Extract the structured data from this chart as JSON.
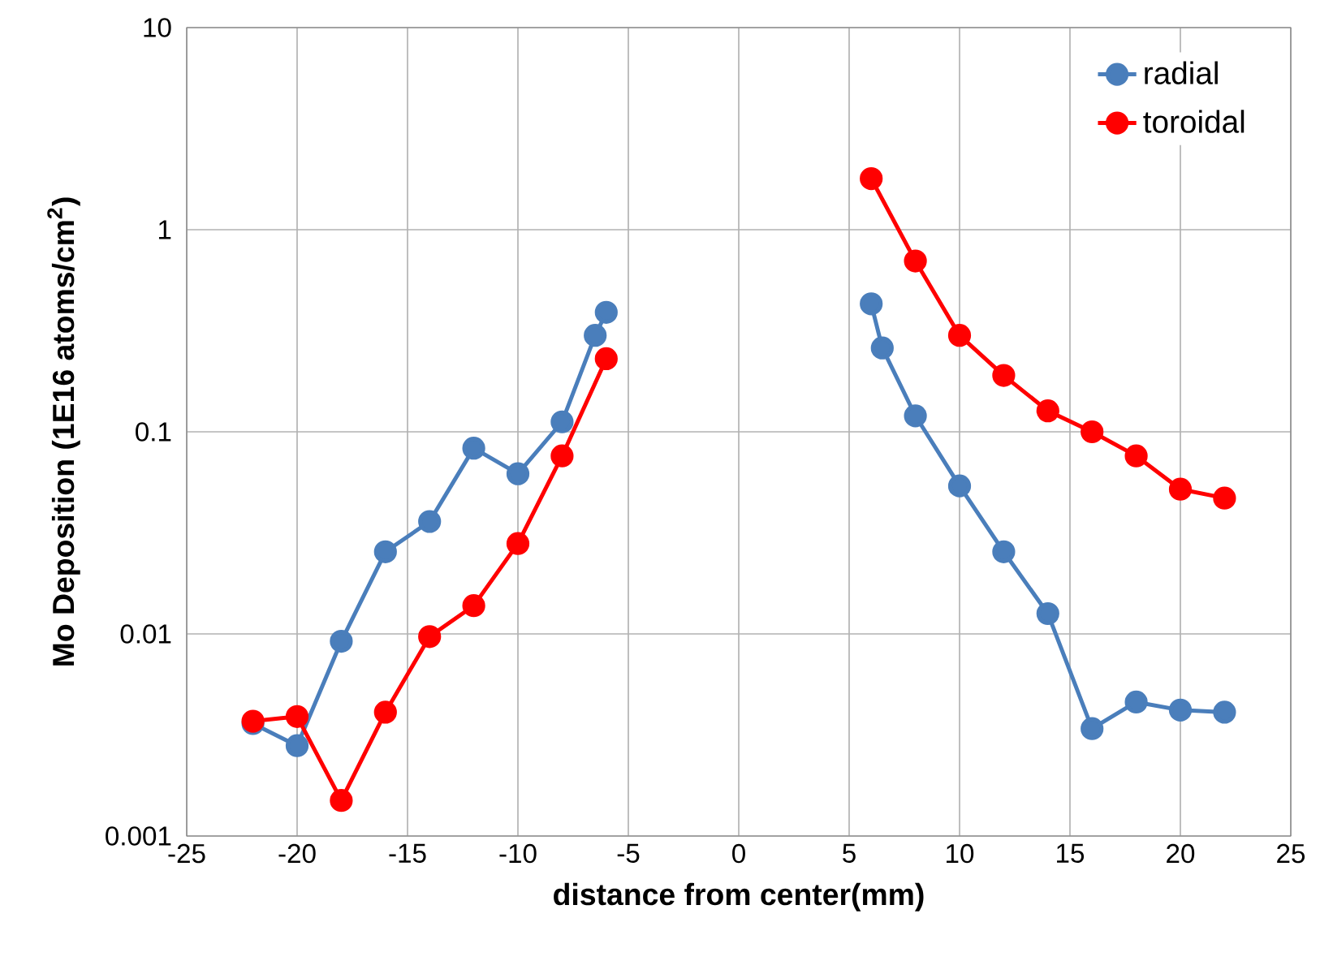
{
  "chart_data": {
    "type": "line",
    "xlabel": "distance from center(mm)",
    "ylabel": "Mo Deposition (1E16 atoms/cm$^{2}$)",
    "log": "y",
    "xlim": [
      -25,
      25
    ],
    "xticks": [
      -25,
      -20,
      -15,
      -10,
      -5,
      0,
      5,
      10,
      15,
      20,
      25
    ],
    "ylim": [
      0.001,
      10
    ],
    "yticks": [
      0.001,
      0.01,
      0.1,
      1,
      10
    ],
    "grid": true,
    "legend": "top right",
    "marker": "circle",
    "line_style": "solid",
    "series": [
      {
        "name": "radial",
        "color": "#4a7ebb",
        "x": [
          -22,
          -20,
          -18,
          -16,
          -14,
          -12,
          -10,
          -8,
          -6.5,
          -6,
          0,
          6,
          6.5,
          8,
          10,
          12,
          14,
          16,
          18,
          20,
          22
        ],
        "values": [
          0.0036,
          0.0028,
          0.0092,
          0.0255,
          0.036,
          0.083,
          0.062,
          0.112,
          0.3,
          0.39,
          null,
          0.43,
          0.26,
          0.12,
          0.054,
          0.0255,
          0.0126,
          0.0034,
          0.0046,
          0.0042,
          0.0041
        ]
      },
      {
        "name": "toroidal",
        "color": "#ff0000",
        "x": [
          -22,
          -20,
          -18,
          -16,
          -14,
          -12,
          -10,
          -8,
          -6,
          0,
          6,
          8,
          10,
          12,
          14,
          16,
          18,
          20,
          22
        ],
        "values": [
          0.0037,
          0.0039,
          0.0015,
          0.0041,
          0.0097,
          0.0138,
          0.028,
          0.076,
          0.23,
          null,
          1.79,
          0.7,
          0.3,
          0.19,
          0.127,
          0.1,
          0.076,
          0.052,
          0.047
        ]
      }
    ]
  }
}
